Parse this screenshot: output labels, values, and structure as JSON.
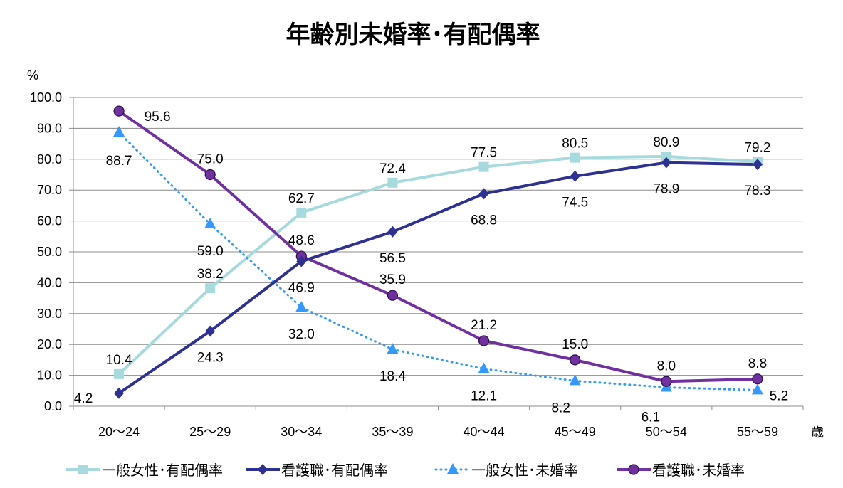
{
  "chart_data": {
    "type": "line",
    "title": "年齢別未婚率･有配偶率",
    "ylabel": "%",
    "xlabel": "歳",
    "ylim": [
      0,
      100
    ],
    "yticks": [
      "0.0",
      "10.0",
      "20.0",
      "30.0",
      "40.0",
      "50.0",
      "60.0",
      "70.0",
      "80.0",
      "90.0",
      "100.0"
    ],
    "grid": true,
    "legend_position": "bottom",
    "categories": [
      "20〜24",
      "25〜29",
      "30〜34",
      "35〜39",
      "40〜44",
      "45〜49",
      "50〜54",
      "55〜59"
    ],
    "series": [
      {
        "name": "一般女性･有配偶率",
        "color": "#a6dadc",
        "marker": "square",
        "style": "solid",
        "values": [
          10.4,
          38.2,
          62.7,
          72.4,
          77.5,
          80.5,
          80.9,
          79.2
        ],
        "labels": [
          "10.4",
          "38.2",
          "62.7",
          "72.4",
          "77.5",
          "80.5",
          "80.9",
          "79.2"
        ]
      },
      {
        "name": "看護職･有配偶率",
        "color": "#2e3192",
        "marker": "diamond",
        "style": "solid",
        "values": [
          4.2,
          24.3,
          46.9,
          56.5,
          68.8,
          74.5,
          78.9,
          78.3
        ],
        "labels": [
          "4.2",
          "24.3",
          "46.9",
          "56.5",
          "68.8",
          "74.5",
          "78.9",
          "78.3"
        ]
      },
      {
        "name": "一般女性･未婚率",
        "color": "#3399ff",
        "marker": "triangle",
        "style": "dotted",
        "values": [
          88.7,
          59.0,
          32.0,
          18.4,
          12.1,
          8.2,
          6.1,
          5.2
        ],
        "labels": [
          "88.7",
          "59.0",
          "32.0",
          "18.4",
          "12.1",
          "8.2",
          "6.1",
          "5.2"
        ]
      },
      {
        "name": "看護職･未婚率",
        "color": "#7030a0",
        "marker": "circle",
        "style": "solid",
        "values": [
          95.6,
          75.0,
          48.6,
          35.9,
          21.2,
          15.0,
          8.0,
          8.8
        ],
        "labels": [
          "95.6",
          "75.0",
          "48.6",
          "35.9",
          "21.2",
          "15.0",
          "8.0",
          "8.8"
        ]
      }
    ]
  }
}
